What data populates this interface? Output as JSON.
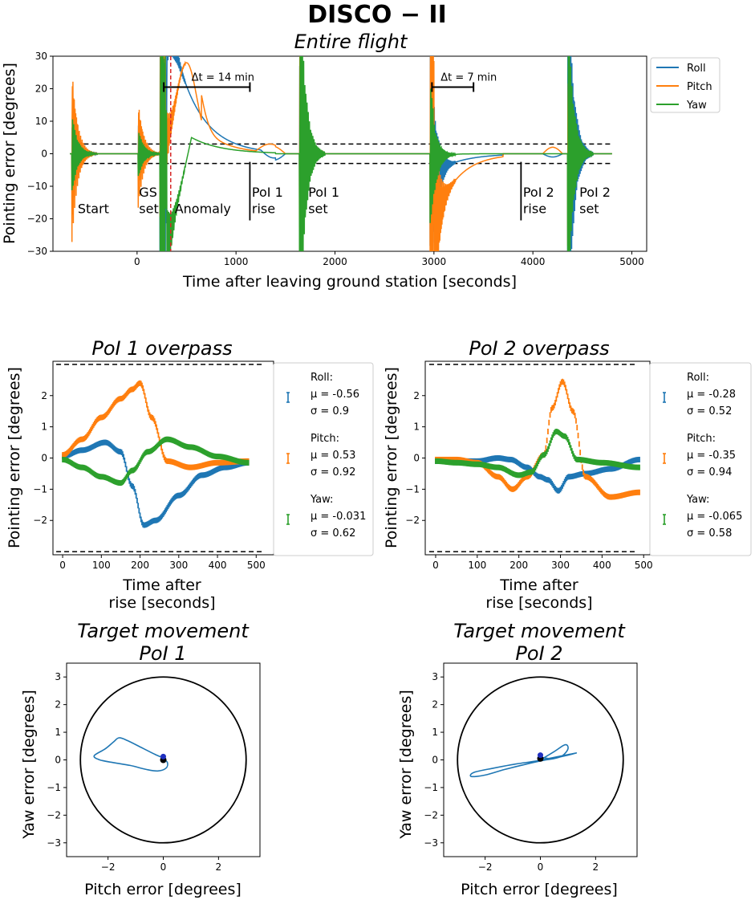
{
  "figure_title": "DISCO − II",
  "chart_data": [
    {
      "id": "entire",
      "type": "line",
      "title": "Entire flight",
      "xlabel": "Time after leaving ground station [seconds]",
      "ylabel": "Pointing error [degrees]",
      "xlim": [
        -850,
        5150
      ],
      "ylim": [
        -30,
        30
      ],
      "xticks": [
        0,
        1000,
        2000,
        3000,
        4000,
        5000
      ],
      "yticks": [
        -30,
        -20,
        -10,
        0,
        10,
        20,
        30
      ],
      "threshold": [
        3,
        -3
      ],
      "colors": {
        "roll": "#1f77b4",
        "pitch": "#ff7f0e",
        "yaw": "#2ca02c"
      },
      "legend": [
        "Roll",
        "Pitch",
        "Yaw"
      ],
      "vline": {
        "x": 340,
        "style": "dashed-red"
      },
      "event_marks": [
        1140,
        3880
      ],
      "intervals": [
        {
          "from": 270,
          "to": 1140,
          "label": "Δt = 14 min"
        },
        {
          "from": 2980,
          "to": 3400,
          "label": "Δt = 7 min"
        }
      ],
      "events": [
        {
          "x": -600,
          "line1": "Start",
          "line2": ""
        },
        {
          "x": 20,
          "line1": "GS",
          "line2": "set"
        },
        {
          "x": 380,
          "line1": "Anomaly",
          "line2": ""
        },
        {
          "x": 1160,
          "line1": "PoI 1",
          "line2": "rise"
        },
        {
          "x": 1730,
          "line1": "PoI 1",
          "line2": "set"
        },
        {
          "x": 3900,
          "line1": "PoI 2",
          "line2": "rise"
        },
        {
          "x": 4470,
          "line1": "PoI 2",
          "line2": "set"
        }
      ],
      "transients": [
        {
          "t": -660,
          "amp": [
            9,
            18,
            6
          ]
        },
        {
          "t": 10,
          "amp": [
            6,
            8,
            8
          ]
        },
        {
          "t": 230,
          "amp": [
            30,
            30,
            30
          ]
        },
        {
          "t": 1640,
          "amp": [
            30,
            30,
            30
          ]
        },
        {
          "t": 2960,
          "amp": [
            30,
            30,
            25
          ]
        },
        {
          "t": 4350,
          "amp": [
            30,
            30,
            30
          ]
        }
      ]
    },
    {
      "id": "poi1",
      "type": "scatter",
      "title": "PoI 1 overpass",
      "xlabel": "Time after",
      "xlabel2": "rise [seconds]",
      "ylabel": "Pointing error [degrees]",
      "xlim": [
        -25,
        545
      ],
      "ylim": [
        -3.1,
        3.1
      ],
      "xticks": [
        0,
        100,
        200,
        300,
        400,
        500
      ],
      "yticks": [
        -2,
        -1,
        0,
        1,
        2
      ],
      "threshold": [
        3,
        -3
      ],
      "series": [
        {
          "name": "Roll",
          "color": "#1f77b4",
          "x": [
            0,
            50,
            110,
            150,
            180,
            210,
            240,
            300,
            360,
            420,
            480
          ],
          "y": [
            0.05,
            0.25,
            0.5,
            0.2,
            -0.9,
            -2.15,
            -2.0,
            -1.2,
            -0.55,
            -0.3,
            -0.15
          ]
        },
        {
          "name": "Pitch",
          "color": "#ff7f0e",
          "x": [
            0,
            50,
            100,
            150,
            180,
            200,
            230,
            270,
            330,
            400,
            480
          ],
          "y": [
            0.1,
            0.6,
            1.3,
            1.9,
            2.2,
            2.4,
            1.3,
            -0.1,
            -0.3,
            -0.15,
            -0.1
          ]
        },
        {
          "name": "Yaw",
          "color": "#2ca02c",
          "x": [
            0,
            50,
            100,
            150,
            180,
            220,
            270,
            330,
            400,
            480
          ],
          "y": [
            -0.05,
            -0.3,
            -0.6,
            -0.8,
            -0.4,
            0.2,
            0.6,
            0.35,
            0.05,
            -0.15
          ]
        }
      ],
      "stats": [
        {
          "name": "Roll:",
          "mu": "μ = -0.56",
          "sigma": "σ = 0.9"
        },
        {
          "name": "Pitch:",
          "mu": "μ = 0.53",
          "sigma": "σ = 0.92"
        },
        {
          "name": "Yaw:",
          "mu": "μ = -0.031",
          "sigma": "σ = 0.62"
        }
      ]
    },
    {
      "id": "poi2",
      "type": "scatter",
      "title": "PoI 2 overpass",
      "xlabel": "Time after",
      "xlabel2": "rise [seconds]",
      "ylabel": "Pointing error [degrees]",
      "xlim": [
        -25,
        515
      ],
      "ylim": [
        -3.1,
        3.1
      ],
      "xticks": [
        0,
        100,
        200,
        300,
        400,
        500
      ],
      "yticks": [
        -2,
        -1,
        0,
        1,
        2
      ],
      "threshold": [
        3,
        -3
      ],
      "series": [
        {
          "name": "Roll",
          "color": "#1f77b4",
          "x": [
            0,
            50,
            100,
            150,
            180,
            220,
            250,
            270,
            295,
            320,
            360,
            420,
            490
          ],
          "y": [
            -0.1,
            -0.1,
            -0.1,
            0.0,
            -0.05,
            -0.3,
            -0.6,
            -0.7,
            -1.05,
            -0.6,
            -0.5,
            -0.35,
            -0.05
          ]
        },
        {
          "name": "Pitch",
          "color": "#ff7f0e",
          "x": [
            0,
            50,
            100,
            150,
            185,
            220,
            260,
            280,
            305,
            330,
            360,
            420,
            490
          ],
          "y": [
            -0.05,
            -0.05,
            -0.15,
            -0.6,
            -1.0,
            -0.6,
            0.1,
            1.6,
            2.45,
            1.5,
            -0.6,
            -1.25,
            -1.1
          ]
        },
        {
          "name": "Yaw",
          "color": "#2ca02c",
          "x": [
            0,
            50,
            100,
            150,
            200,
            230,
            260,
            290,
            310,
            340,
            400,
            490
          ],
          "y": [
            -0.1,
            -0.15,
            -0.2,
            -0.3,
            -0.55,
            -0.45,
            0.1,
            0.85,
            0.7,
            -0.05,
            -0.15,
            -0.3
          ]
        }
      ],
      "stats": [
        {
          "name": "Roll:",
          "mu": "μ = -0.28",
          "sigma": "σ = 0.52"
        },
        {
          "name": "Pitch:",
          "mu": "μ = -0.35",
          "sigma": "σ = 0.94"
        },
        {
          "name": "Yaw:",
          "mu": "μ = -0.065",
          "sigma": "σ = 0.58"
        }
      ]
    },
    {
      "id": "move1",
      "type": "line",
      "title": "Target movement",
      "title2": "PoI 1",
      "xlabel": "Pitch error [degrees]",
      "ylabel": "Yaw error [degrees]",
      "xlim": [
        -3.5,
        3.5
      ],
      "ylim": [
        -3.5,
        3.5
      ],
      "xticks": [
        -2,
        0,
        2
      ],
      "yticks": [
        -3,
        -2,
        -1,
        0,
        1,
        2,
        3
      ],
      "circle_radius": 3,
      "color": "#1f77b4",
      "path_x": [
        0.05,
        -0.3,
        -0.8,
        -1.3,
        -1.6,
        -1.8,
        -2.1,
        -2.5,
        -2.3,
        -1.8,
        -1.2,
        -0.6,
        -0.2,
        0.1,
        0.15,
        0.0,
        0.05
      ],
      "path_y": [
        0.05,
        0.2,
        0.45,
        0.7,
        0.8,
        0.65,
        0.4,
        0.15,
        0.0,
        -0.1,
        -0.2,
        -0.35,
        -0.4,
        -0.3,
        -0.1,
        0.05,
        0.0
      ],
      "marker": {
        "x": 0.0,
        "y": 0.0
      }
    },
    {
      "id": "move2",
      "type": "line",
      "title": "Target movement",
      "title2": "PoI 2",
      "xlabel": "Pitch error [degrees]",
      "ylabel": "Yaw error [degrees]",
      "xlim": [
        -3.5,
        3.5
      ],
      "ylim": [
        -3.5,
        3.5
      ],
      "xticks": [
        -2,
        0,
        2
      ],
      "yticks": [
        -3,
        -2,
        -1,
        0,
        1,
        2,
        3
      ],
      "circle_radius": 3,
      "color": "#1f77b4",
      "path_x": [
        0.0,
        0.5,
        0.9,
        1.0,
        0.8,
        0.5,
        0.2,
        -0.5,
        -1.3,
        -2.0,
        -2.5,
        -2.4,
        -1.7,
        -0.9,
        -0.2,
        0.3,
        0.8,
        1.3,
        0.9,
        0.4,
        0.0
      ],
      "path_y": [
        0.0,
        0.3,
        0.55,
        0.4,
        0.15,
        0.05,
        0.0,
        -0.15,
        -0.35,
        -0.55,
        -0.6,
        -0.45,
        -0.3,
        -0.15,
        -0.05,
        0.05,
        0.15,
        0.25,
        0.15,
        0.05,
        0.1
      ],
      "marker": {
        "x": 0.0,
        "y": 0.05
      }
    }
  ]
}
